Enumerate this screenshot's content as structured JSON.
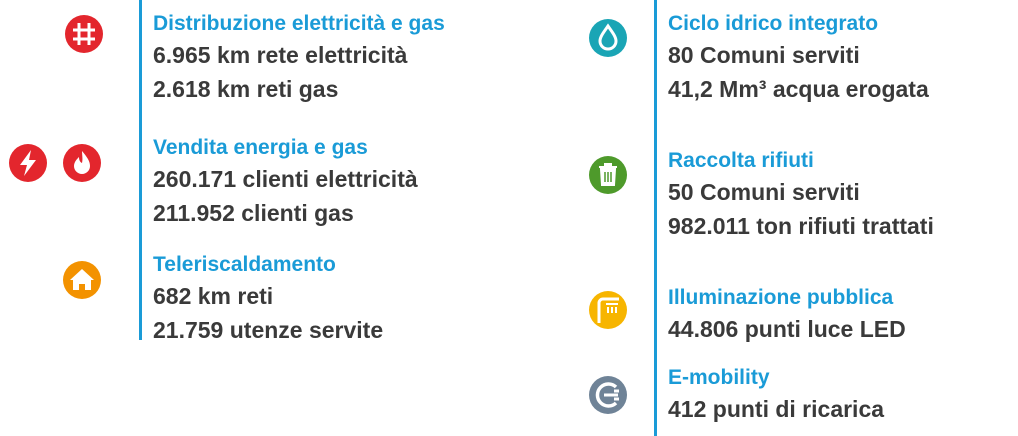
{
  "left": [
    {
      "title": "Distribuzione elettricità e gas",
      "lines": [
        "6.965 km rete elettricità",
        "2.618 km reti gas"
      ]
    },
    {
      "title": "Vendita energia e gas",
      "lines": [
        "260.171 clienti elettricità",
        "211.952 clienti gas"
      ]
    },
    {
      "title": "Teleriscaldamento",
      "lines": [
        "682 km reti",
        "21.759 utenze servite"
      ]
    }
  ],
  "right": [
    {
      "title": "Ciclo idrico integrato",
      "lines": [
        "80 Comuni serviti",
        "41,2 Mm³ acqua erogata"
      ]
    },
    {
      "title": "Raccolta rifiuti",
      "lines": [
        "50 Comuni serviti",
        "982.011 ton rifiuti trattati"
      ]
    },
    {
      "title": "Illuminazione pubblica",
      "lines": [
        "44.806 punti luce LED"
      ]
    },
    {
      "title": "E-mobility",
      "lines": [
        "412 punti di ricarica"
      ]
    }
  ]
}
